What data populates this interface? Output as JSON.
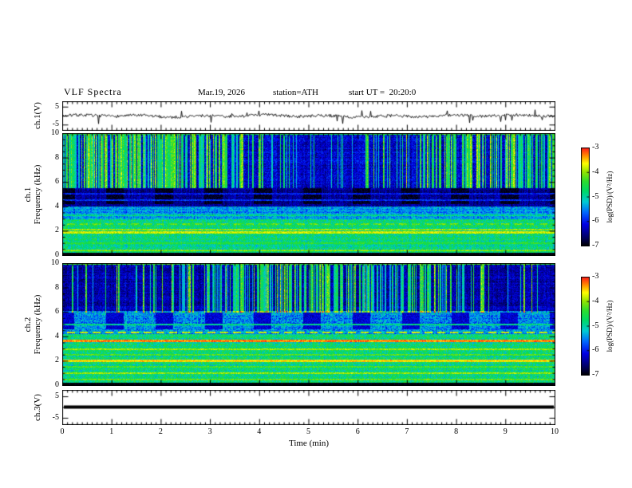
{
  "header": {
    "title": "VLF Spectra",
    "date": "Mar.19, 2026",
    "station": "station=ATH",
    "start_ut": "start UT =  20:20:0"
  },
  "x_axis": {
    "label": "Time (min)",
    "ticks": [
      0,
      1,
      2,
      3,
      4,
      5,
      6,
      7,
      8,
      9,
      10
    ],
    "range": [
      0,
      10
    ]
  },
  "panels": {
    "ch1_wave": {
      "ylabel": "ch.1(V)",
      "yticks": [
        5,
        -5
      ]
    },
    "ch1_spec": {
      "ylabel_line1": "ch.1",
      "ylabel_line2": "Frequency (kHz)",
      "yticks": [
        10,
        8,
        6,
        4,
        2,
        0
      ]
    },
    "ch2_spec": {
      "ylabel_line1": "ch.2",
      "ylabel_line2": "Frequency (kHz)",
      "yticks": [
        10,
        8,
        6,
        4,
        2,
        0
      ]
    },
    "ch3_wave": {
      "ylabel": "ch.3(V)",
      "yticks": [
        5,
        -5
      ]
    }
  },
  "colorbar": {
    "label": "log(PSD)/(V²/Hz)",
    "ticks": [
      -3,
      -4,
      -5,
      -6,
      -7
    ],
    "range": [
      -7,
      -3
    ],
    "stops": [
      [
        0,
        "#000000"
      ],
      [
        0.09,
        "#000066"
      ],
      [
        0.22,
        "#0000e6"
      ],
      [
        0.34,
        "#0066ff"
      ],
      [
        0.45,
        "#00ccd5"
      ],
      [
        0.56,
        "#00d966"
      ],
      [
        0.66,
        "#2ede2e"
      ],
      [
        0.76,
        "#9ae600"
      ],
      [
        0.84,
        "#ffff00"
      ],
      [
        0.92,
        "#ff8c00"
      ],
      [
        1,
        "#ff1a1a"
      ]
    ]
  },
  "chart_data": [
    {
      "type": "line",
      "title": "ch.1(V) time series",
      "xlabel": "Time (min)",
      "xlim": [
        0,
        10
      ],
      "ylabel": "ch.1(V)",
      "ytick_values": [
        5,
        -5
      ],
      "summary": "continuous broadband noise centred on 0 V, envelope about ±1 V, impulsive spikes to about ±4 V throughout the 10 min record",
      "render": {
        "seed": 7,
        "noise_amp": 0.8,
        "spike_prob": 0.035,
        "spike_amp": 3.0
      }
    },
    {
      "type": "heatmap",
      "title": "ch.1 dynamic spectrum",
      "xlabel": "Time (min)",
      "xlim": [
        0,
        10
      ],
      "ylabel": "Frequency (kHz)",
      "ylim": [
        0,
        10
      ],
      "zlabel": "log(PSD)/(V²/Hz)",
      "zlim": [
        -7,
        -3
      ],
      "render": {
        "seed": 13,
        "bands": [
          {
            "f0": 0,
            "f1": 0.25,
            "psd": -7,
            "noise": 0.1
          },
          {
            "f0": 0.25,
            "f1": 3,
            "psd": -4.85,
            "noise": 0.45
          },
          {
            "f0": 3,
            "f1": 4,
            "psd": -5.5,
            "noise": 0.4
          },
          {
            "f0": 4,
            "f1": 5.6,
            "psd": -6.45,
            "noise": 0.28
          },
          {
            "f0": 5.6,
            "f1": 10,
            "psd": -6.2,
            "noise": 0.33
          }
        ],
        "hlines": [
          {
            "f": 0.45,
            "psd": -4.1,
            "w": 0.07
          },
          {
            "f": 1.0,
            "psd": -4.5,
            "w": 0.06
          },
          {
            "f": 1.9,
            "psd": -3.8,
            "w": 0.09
          },
          {
            "f": 2.15,
            "psd": -4.0,
            "w": 0.07
          },
          {
            "f": 2.6,
            "psd": -4.2,
            "w": 0.07,
            "dash": true
          },
          {
            "f": 3.3,
            "psd": -4.9,
            "w": 0.06
          },
          {
            "f": 4.55,
            "psd": -5.9,
            "w": 0.06
          },
          {
            "f": 5.05,
            "psd": -6.0,
            "w": 0.05
          },
          {
            "f": 9.95,
            "psd": -4.6,
            "w": 0.06
          }
        ],
        "streaks": {
          "fmin": 5.5,
          "fmax": 10,
          "density": 0.55
        },
        "blobs": {
          "f0": 4.2,
          "f1": 5.5,
          "period": 1.0,
          "duty": 0.3,
          "psd": -6.9
        }
      }
    },
    {
      "type": "heatmap",
      "title": "ch.2 dynamic spectrum",
      "xlabel": "Time (min)",
      "xlim": [
        0,
        10
      ],
      "ylabel": "Frequency (kHz)",
      "ylim": [
        0,
        10
      ],
      "zlabel": "log(PSD)/(V²/Hz)",
      "zlim": [
        -7,
        -3
      ],
      "render": {
        "seed": 29,
        "bands": [
          {
            "f0": 0,
            "f1": 0.25,
            "psd": -7,
            "noise": 0.1
          },
          {
            "f0": 0.25,
            "f1": 4.2,
            "psd": -4.8,
            "noise": 0.45
          },
          {
            "f0": 4.2,
            "f1": 6.1,
            "psd": -5.45,
            "noise": 0.5
          },
          {
            "f0": 6.1,
            "f1": 10,
            "psd": -6.35,
            "noise": 0.3
          }
        ],
        "hlines": [
          {
            "f": 0.5,
            "psd": -4.2,
            "w": 0.07
          },
          {
            "f": 1.0,
            "psd": -4.0,
            "w": 0.08
          },
          {
            "f": 1.55,
            "psd": -4.3,
            "w": 0.06
          },
          {
            "f": 2.05,
            "psd": -3.6,
            "w": 0.09
          },
          {
            "f": 2.5,
            "psd": -4.25,
            "w": 0.06
          },
          {
            "f": 3.0,
            "psd": -4.0,
            "w": 0.07
          },
          {
            "f": 3.65,
            "psd": -3.3,
            "w": 0.11
          },
          {
            "f": 4.35,
            "psd": -3.8,
            "w": 0.07,
            "dash": true
          },
          {
            "f": 5.0,
            "psd": -4.9,
            "w": 0.06
          },
          {
            "f": 9.95,
            "psd": -4.4,
            "w": 0.06
          }
        ],
        "streaks": {
          "fmin": 6.0,
          "fmax": 10,
          "density": 0.5
        },
        "blobs": {
          "f0": 4.6,
          "f1": 6.0,
          "period": 1.0,
          "duty": 0.28,
          "psd": -6.2
        }
      }
    },
    {
      "type": "line",
      "title": "ch.3(V) time series",
      "xlabel": "Time (min)",
      "xlim": [
        0,
        10
      ],
      "ylabel": "ch.3(V)",
      "ytick_values": [
        5,
        -5
      ],
      "summary": "flat thick line at 0 V for the entire record (inactive channel)",
      "render": {
        "flat_value": 0,
        "thickness": 4
      }
    }
  ]
}
